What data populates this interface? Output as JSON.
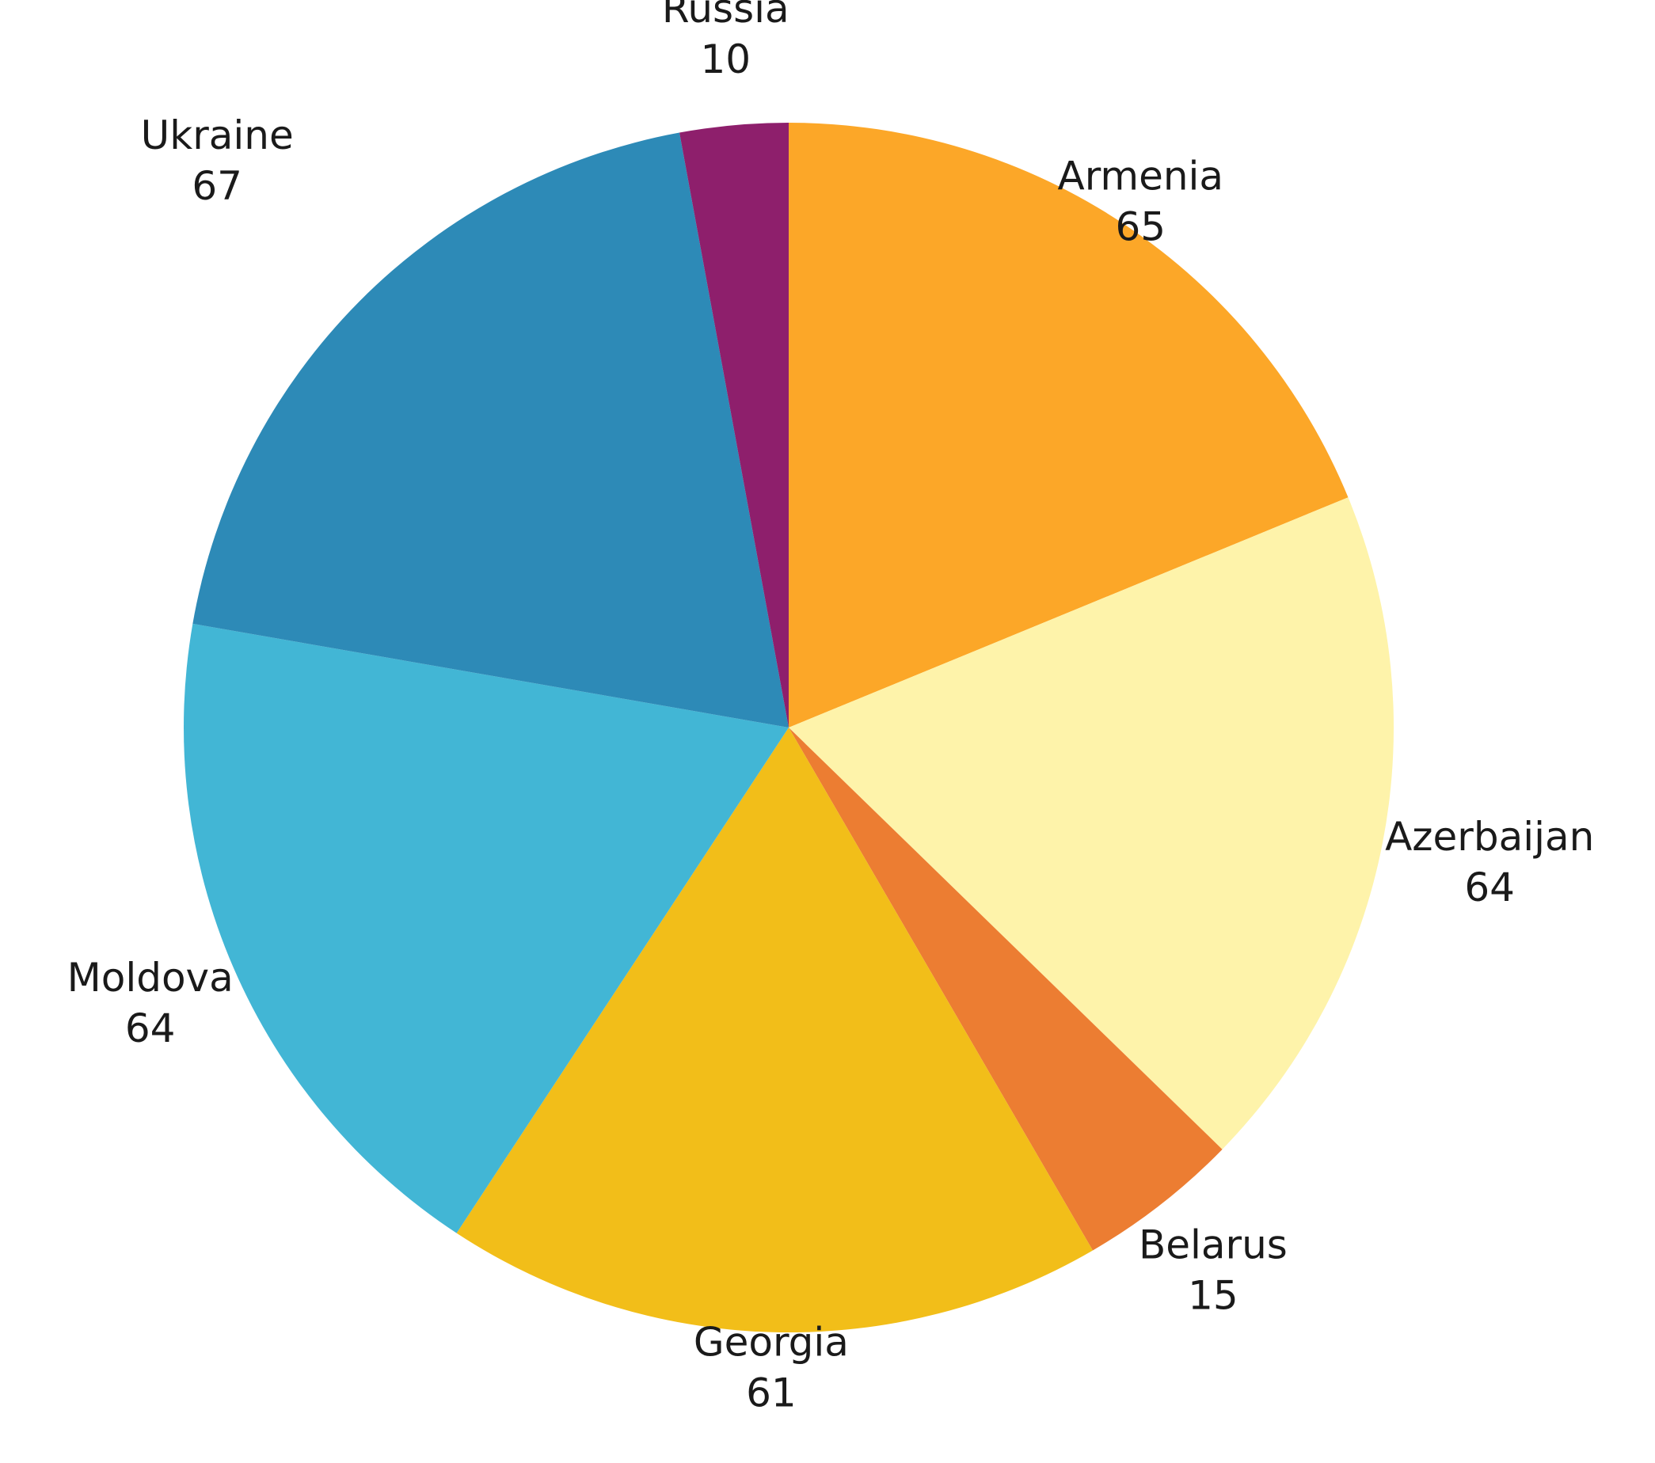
{
  "chart_data": {
    "type": "pie",
    "title": "",
    "start_angle_deg": 0,
    "direction": "clockwise",
    "slices": [
      {
        "label": "Armenia",
        "value": 65,
        "color": "#FCA728"
      },
      {
        "label": "Azerbaijan",
        "value": 64,
        "color": "#FEF3AA"
      },
      {
        "label": "Belarus",
        "value": 15,
        "color": "#EC7D32"
      },
      {
        "label": "Georgia",
        "value": 61,
        "color": "#F2BE19"
      },
      {
        "label": "Moldova",
        "value": 64,
        "color": "#42B6D5"
      },
      {
        "label": "Ukraine",
        "value": 67,
        "color": "#2D8AB7"
      },
      {
        "label": "Russia",
        "value": 10,
        "color": "#8E1F6C"
      }
    ]
  }
}
